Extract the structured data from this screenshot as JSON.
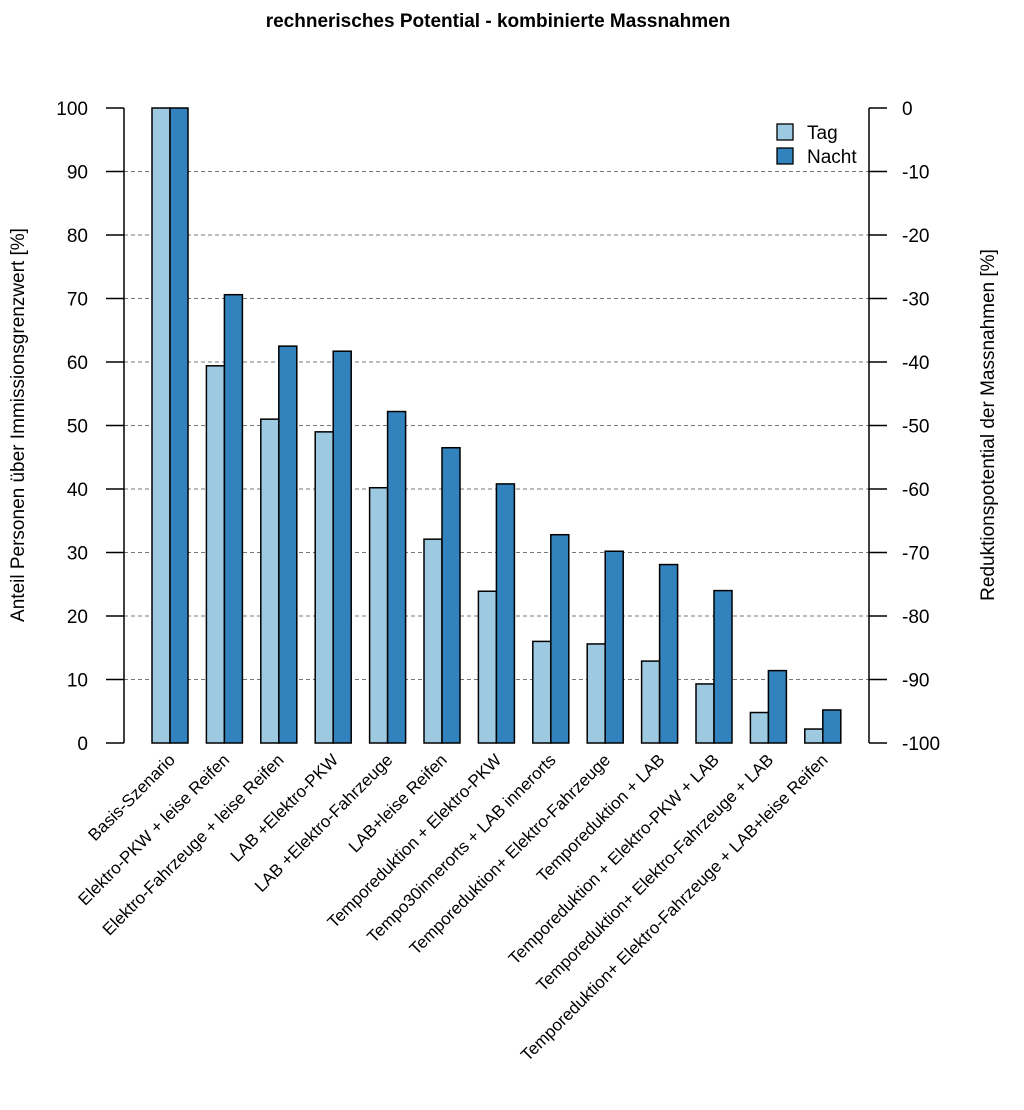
{
  "chart_data": {
    "type": "bar",
    "title": "rechnerisches Potential - kombinierte Massnahmen",
    "ylabel": "Anteil Personen über Immissionsgrenzwert [%]",
    "ylabel_right": "Reduktionspotential der Massnahmen [%]",
    "ylim": [
      0,
      100
    ],
    "ylim_right": [
      -100,
      0
    ],
    "yticks": [
      0,
      10,
      20,
      30,
      40,
      50,
      60,
      70,
      80,
      90,
      100
    ],
    "yticks_right": [
      0,
      -10,
      -20,
      -30,
      -40,
      -50,
      -60,
      -70,
      -80,
      -90,
      -100
    ],
    "grid": "horizontal dashed",
    "legend_position": "top-right",
    "categories": [
      "Basis-Szenario",
      "Elektro-PKW + leise Reifen",
      "Elektro-Fahrzeuge + leise Reifen",
      "LAB +Elektro-PKW",
      "LAB +Elektro-Fahrzeuge",
      "LAB+leise Reifen",
      "Temporeduktion + Elektro-PKW",
      "Tempo30innerorts + LAB innerorts",
      "Temporeduktion+ Elektro-Fahrzeuge",
      "Temporeduktion + LAB",
      "Temporeduktion + Elektro-PKW + LAB",
      "Temporeduktion+ Elektro-Fahrzeuge + LAB",
      "Temporeduktion+ Elektro-Fahrzeuge + LAB+leise Reifen"
    ],
    "series": [
      {
        "name": "Tag",
        "color": "#9ecae1",
        "values": [
          100,
          59.4,
          51.0,
          49.0,
          40.2,
          32.1,
          23.9,
          16.0,
          15.6,
          12.9,
          9.3,
          4.8,
          2.2
        ]
      },
      {
        "name": "Nacht",
        "color": "#3182bd",
        "values": [
          100,
          70.6,
          62.5,
          61.7,
          52.2,
          46.5,
          40.8,
          32.8,
          30.2,
          28.1,
          24.0,
          11.4,
          5.2
        ]
      }
    ]
  }
}
